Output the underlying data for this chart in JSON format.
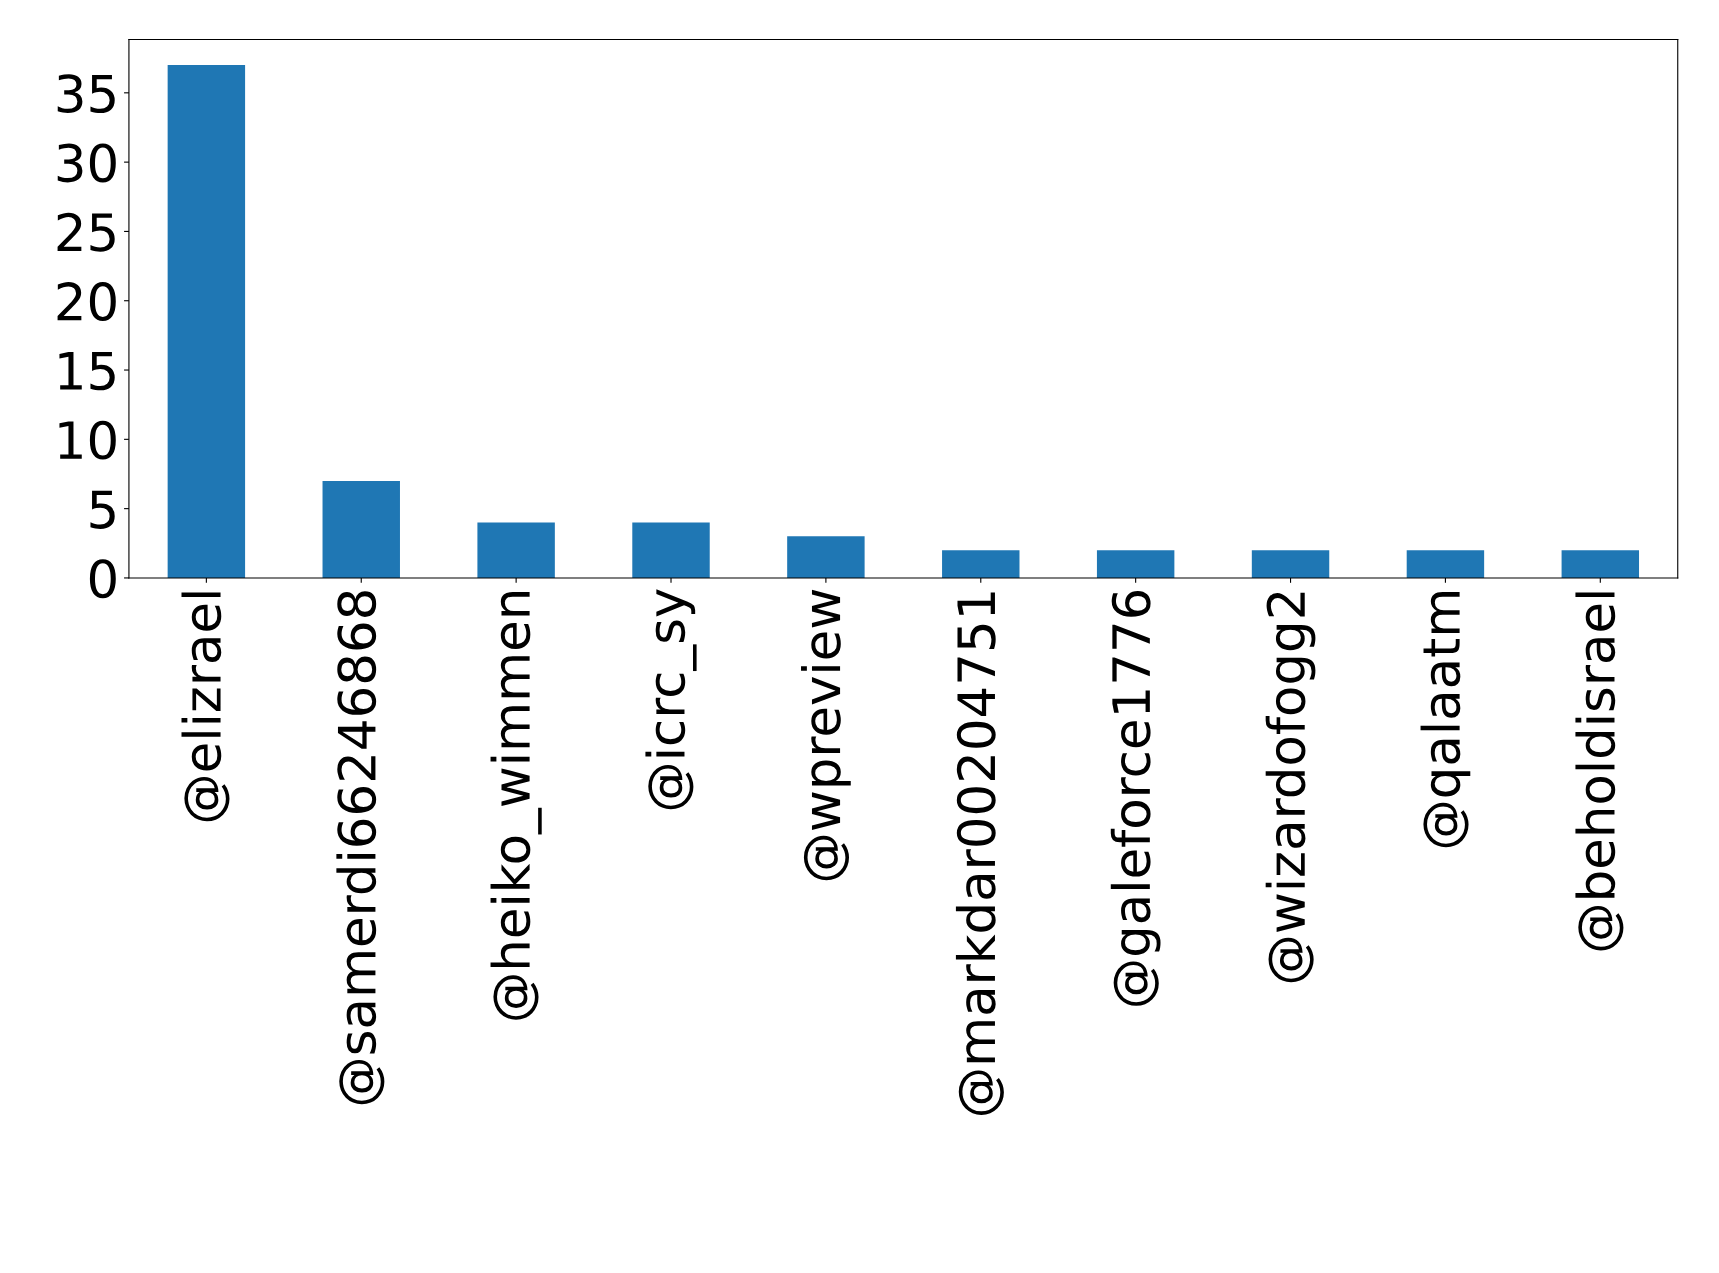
{
  "chart_data": {
    "type": "bar",
    "categories": [
      "@elizrael",
      "@samerdi66246868",
      "@heiko_wimmen",
      "@icrc_sy",
      "@wpreview",
      "@markdar00204751",
      "@galeforce1776",
      "@wizardofogg2",
      "@qalaatm",
      "@beholdisrael"
    ],
    "values": [
      37,
      7,
      4,
      4,
      3,
      2,
      2,
      2,
      2,
      2
    ],
    "color": "#1f77b4",
    "ylim": [
      0,
      38.85
    ],
    "yticks": [
      0,
      5,
      10,
      15,
      20,
      25,
      30,
      35
    ],
    "grid": false,
    "legend": false
  }
}
